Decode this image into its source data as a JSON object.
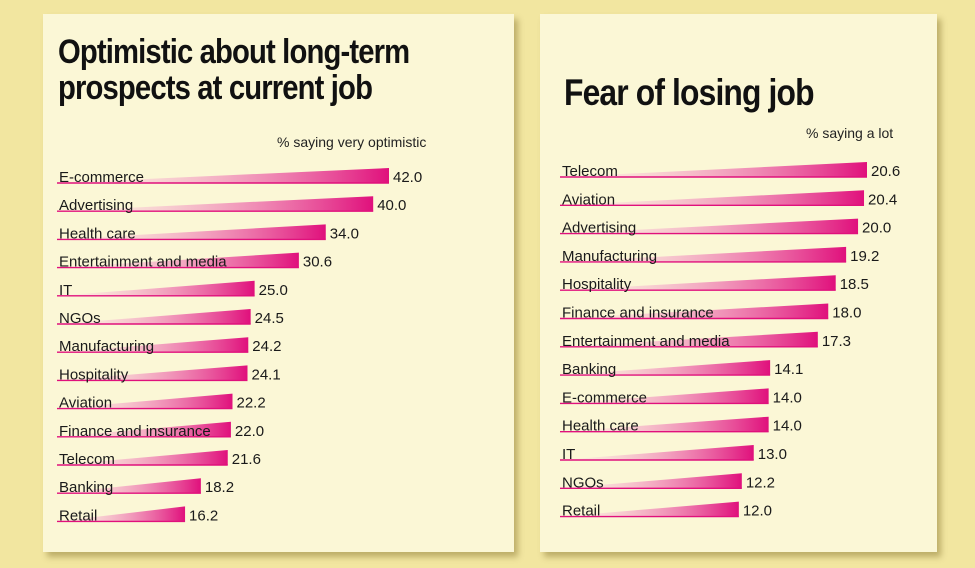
{
  "colors": {
    "background": "#f2e6a0",
    "panel": "#fbf7d6",
    "bar_start": "#fde6f0",
    "bar_end": "#e0107c"
  },
  "chart_data": [
    {
      "type": "bar",
      "orientation": "horizontal",
      "title": "Optimistic about long-term prospects at current job",
      "subtitle": "% saying very optimistic",
      "categories": [
        "E-commerce",
        "Advertising",
        "Health care",
        "Entertainment and media",
        "IT",
        "NGOs",
        "Manufacturing",
        "Hospitality",
        "Aviation",
        "Finance and insurance",
        "Telecom",
        "Banking",
        "Retail"
      ],
      "values": [
        42.0,
        40.0,
        34.0,
        30.6,
        25.0,
        24.5,
        24.2,
        24.1,
        22.2,
        22.0,
        21.6,
        18.2,
        16.2
      ],
      "value_labels": [
        "42.0",
        "40.0",
        "34.0",
        "30.6",
        "25.0",
        "24.5",
        "24.2",
        "24.1",
        "22.2",
        "22.0",
        "21.6",
        "18.2",
        "16.2"
      ],
      "xlim": [
        0,
        42.0
      ],
      "grid": false,
      "legend": "none"
    },
    {
      "type": "bar",
      "orientation": "horizontal",
      "title": "Fear of losing job",
      "subtitle": "% saying a lot",
      "categories": [
        "Telecom",
        "Aviation",
        "Advertising",
        "Manufacturing",
        "Hospitality",
        "Finance and insurance",
        "Entertainment and media",
        "Banking",
        "E-commerce",
        "Health care",
        "IT",
        "NGOs",
        "Retail"
      ],
      "values": [
        20.6,
        20.4,
        20.0,
        19.2,
        18.5,
        18.0,
        17.3,
        14.1,
        14.0,
        14.0,
        13.0,
        12.2,
        12.0
      ],
      "value_labels": [
        "20.6",
        "20.4",
        "20.0",
        "19.2",
        "18.5",
        "18.0",
        "17.3",
        "14.1",
        "14.0",
        "14.0",
        "13.0",
        "12.2",
        "12.0"
      ],
      "xlim": [
        0,
        20.6
      ],
      "grid": false,
      "legend": "none"
    }
  ]
}
